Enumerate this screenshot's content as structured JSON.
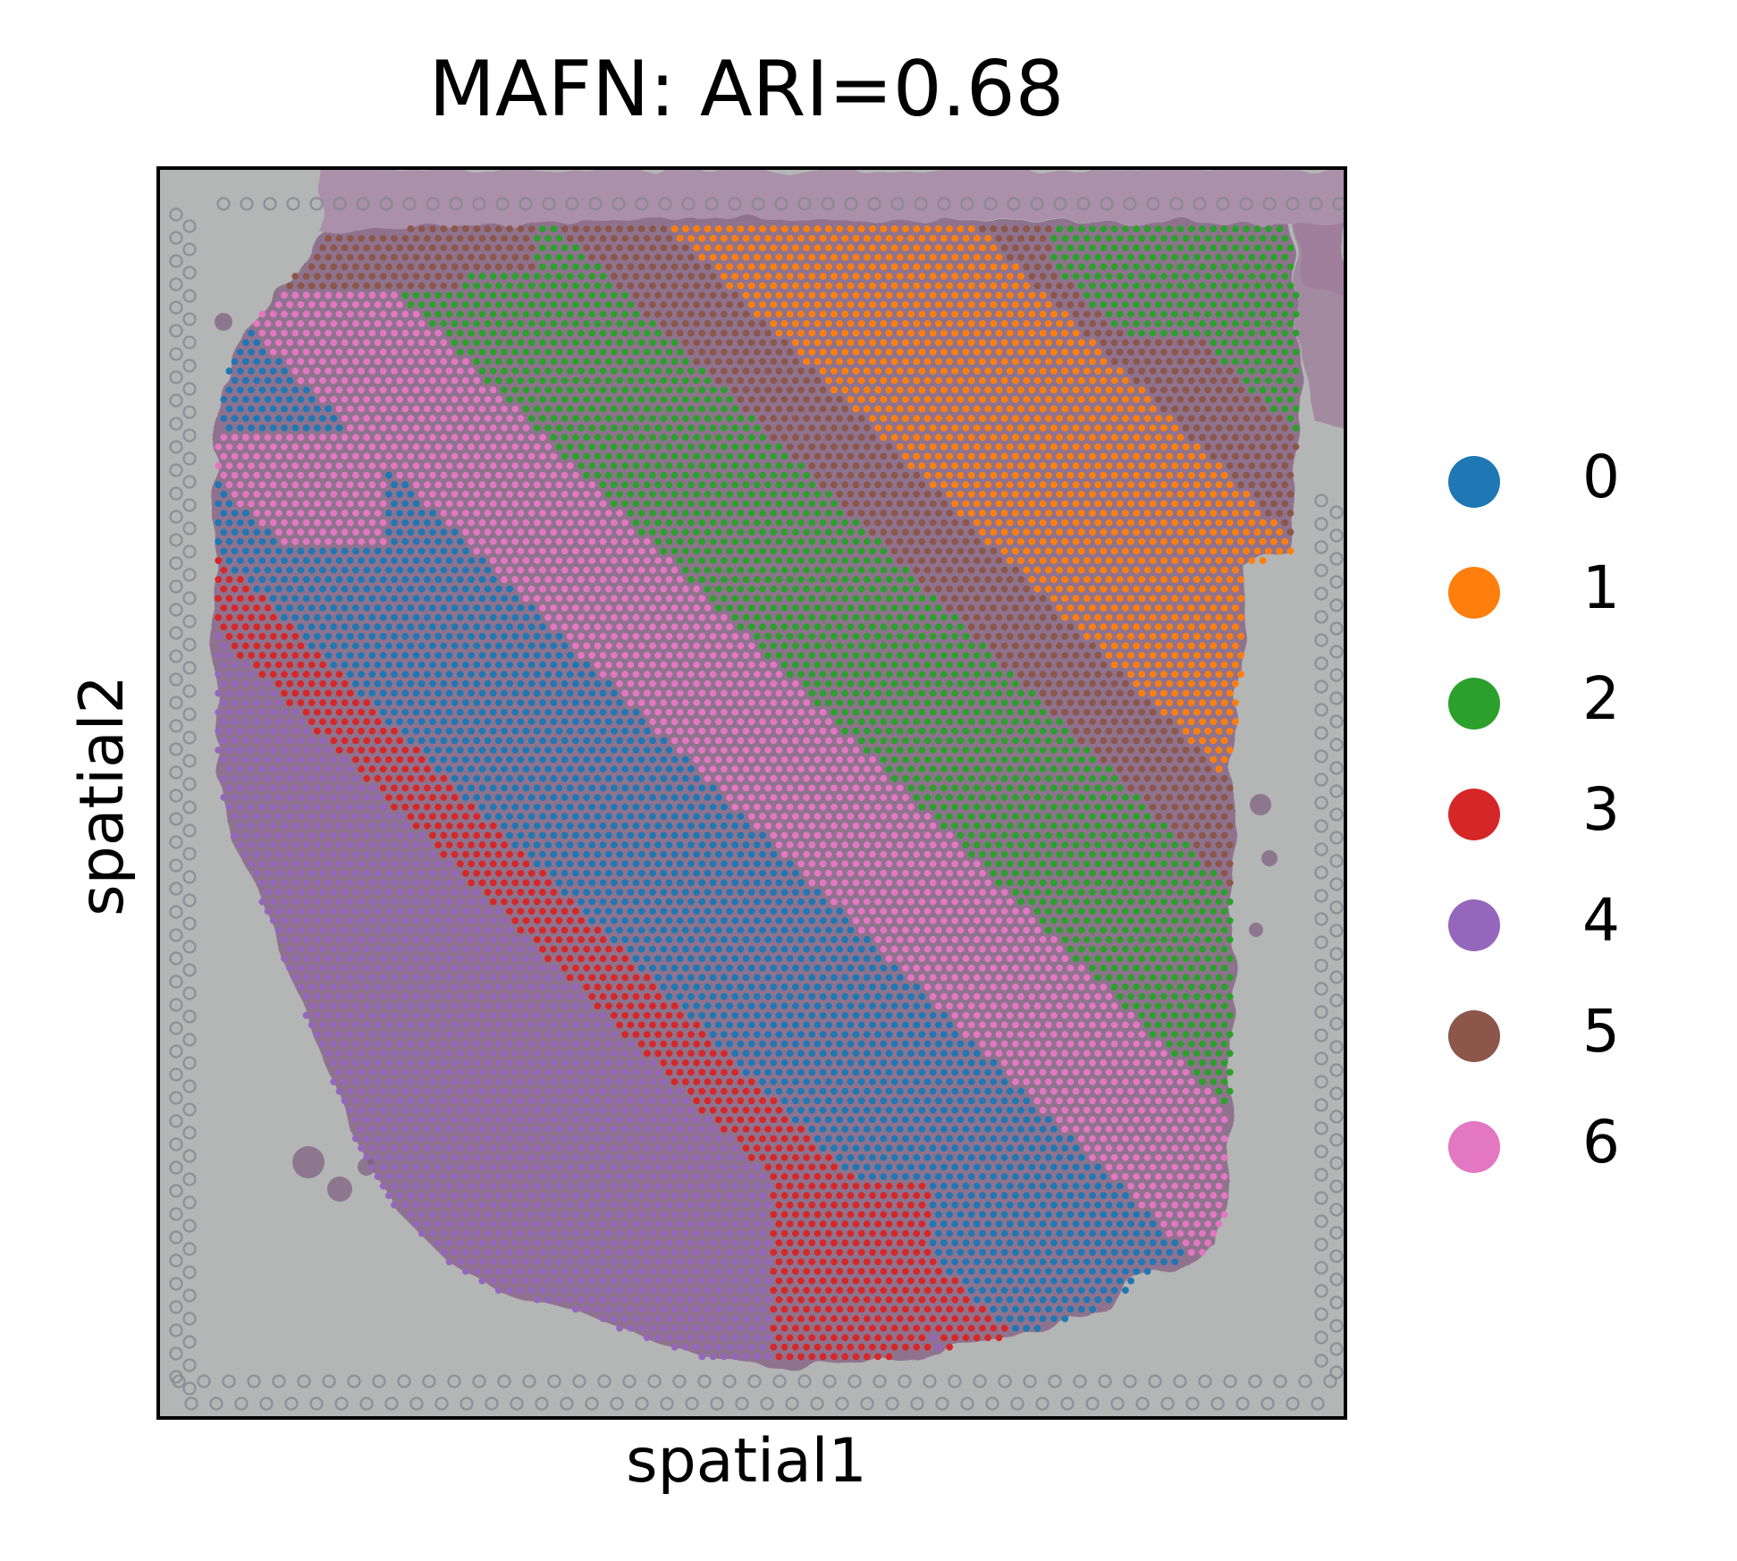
{
  "chart_data": {
    "type": "scatter",
    "title": "MAFN: ARI=0.68",
    "xlabel": "spatial1",
    "ylabel": "spatial2",
    "axis_ticks": false,
    "grid": false,
    "background": "H&E tissue section image",
    "legend_position": "right",
    "clusters": [
      {
        "label": "0",
        "color": "#1f77b4"
      },
      {
        "label": "1",
        "color": "#ff7f0e"
      },
      {
        "label": "2",
        "color": "#2ca02c"
      },
      {
        "label": "3",
        "color": "#d62728"
      },
      {
        "label": "4",
        "color": "#9467bd"
      },
      {
        "label": "5",
        "color": "#8c564b"
      },
      {
        "label": "6",
        "color": "#e377c2"
      }
    ]
  },
  "colors": {
    "slide_background": "#b3b6b4",
    "tissue": "#8e6f8c",
    "fiducial": "#868a90"
  }
}
